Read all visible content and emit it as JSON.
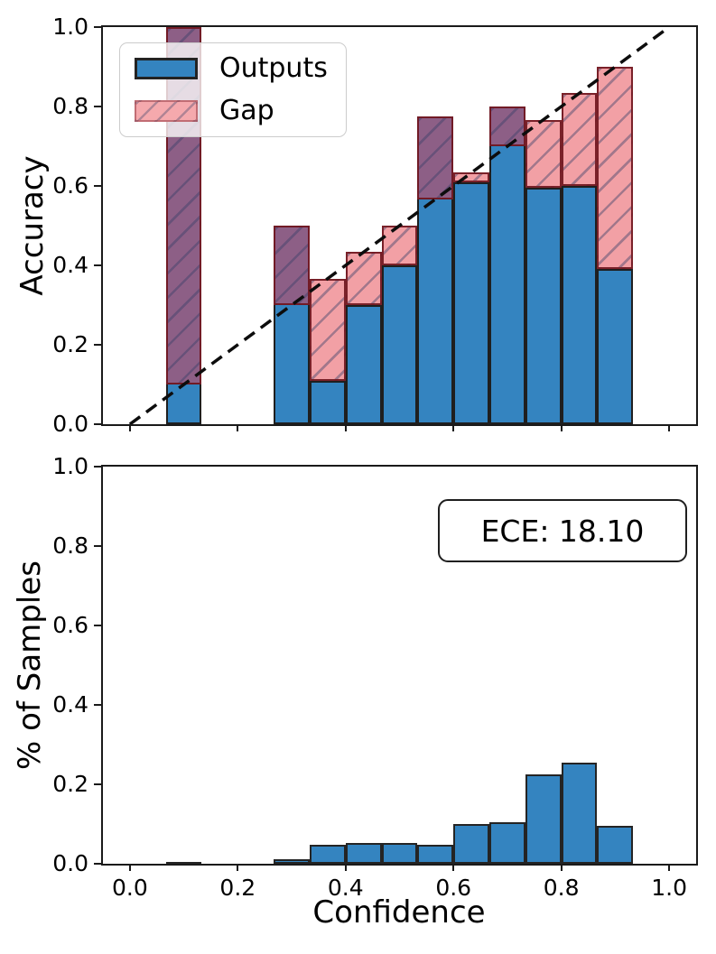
{
  "figure": {
    "background": "#ffffff"
  },
  "top_chart": {
    "ylabel": "Accuracy",
    "yticks": [
      {
        "label": "0.0",
        "value": 0.0
      },
      {
        "label": "0.2",
        "value": 0.2
      },
      {
        "label": "0.4",
        "value": 0.4
      },
      {
        "label": "0.6",
        "value": 0.6
      },
      {
        "label": "0.8",
        "value": 0.8
      },
      {
        "label": "1.0",
        "value": 1.0
      }
    ],
    "xtick_values": [
      0.0,
      0.2,
      0.4,
      0.6,
      0.8,
      1.0
    ],
    "legend": {
      "outputs_label": "Outputs",
      "gap_label": "Gap"
    }
  },
  "bottom_chart": {
    "ylabel": "% of Samples",
    "xlabel": "Confidence",
    "ece_label": "ECE: 18.10",
    "yticks": [
      {
        "label": "0.0",
        "value": 0.0
      },
      {
        "label": "0.2",
        "value": 0.2
      },
      {
        "label": "0.4",
        "value": 0.4
      },
      {
        "label": "0.6",
        "value": 0.6
      },
      {
        "label": "0.8",
        "value": 0.8
      },
      {
        "label": "1.0",
        "value": 1.0
      }
    ],
    "xticks": [
      {
        "label": "0.0",
        "value": 0.0
      },
      {
        "label": "0.2",
        "value": 0.2
      },
      {
        "label": "0.4",
        "value": 0.4
      },
      {
        "label": "0.6",
        "value": 0.6
      },
      {
        "label": "0.8",
        "value": 0.8
      },
      {
        "label": "1.0",
        "value": 1.0
      }
    ]
  },
  "colors": {
    "outputs_blue": "#3484c0",
    "gap_pink": "#f2a0a5",
    "gap_overlap_purple": "#8d5f86",
    "gap_edge_maroon": "#70161e",
    "bar_edge_dark": "#1f1f1f",
    "spine": "#1a1a1a",
    "identity_line": "#0d0d0d"
  },
  "chart_data": [
    {
      "type": "bar",
      "subtype": "reliability-diagram",
      "title": "",
      "xlabel": "",
      "ylabel": "Accuracy",
      "xlim": [
        -0.05,
        1.05
      ],
      "ylim": [
        0,
        1
      ],
      "grid": false,
      "legend_position": "upper left",
      "identity_line": {
        "from": [
          0,
          0
        ],
        "to": [
          1,
          1
        ],
        "style": "dashed",
        "color": "#0d0d0d"
      },
      "bin_width": 0.0667,
      "bin_centers": [
        0.1,
        0.3,
        0.3667,
        0.4333,
        0.5,
        0.5667,
        0.6333,
        0.7,
        0.7667,
        0.8333,
        0.9
      ],
      "series": [
        {
          "name": "Outputs",
          "meaning": "accuracy per confidence bin",
          "values": [
            1.0,
            0.5,
            0.11,
            0.3,
            0.4,
            0.775,
            0.61,
            0.8,
            0.595,
            0.6,
            0.39
          ]
        },
        {
          "name": "Gap",
          "meaning": "bar spans from accuracy to bin confidence; hatched",
          "values": [
            0.1,
            0.3,
            0.3667,
            0.4333,
            0.5,
            0.5667,
            0.6333,
            0.7,
            0.7667,
            0.8333,
            0.9
          ]
        }
      ]
    },
    {
      "type": "bar",
      "subtype": "confidence-histogram",
      "title": "",
      "xlabel": "Confidence",
      "ylabel": "% of Samples",
      "xlim": [
        -0.05,
        1.05
      ],
      "ylim": [
        0,
        1
      ],
      "grid": false,
      "annotation": "ECE: 18.10",
      "bin_width": 0.0667,
      "bin_centers": [
        0.1,
        0.3,
        0.3667,
        0.4333,
        0.5,
        0.5667,
        0.6333,
        0.7,
        0.7667,
        0.8333,
        0.9
      ],
      "values": [
        0.005,
        0.012,
        0.048,
        0.052,
        0.052,
        0.048,
        0.1,
        0.105,
        0.225,
        0.255,
        0.095
      ]
    }
  ]
}
